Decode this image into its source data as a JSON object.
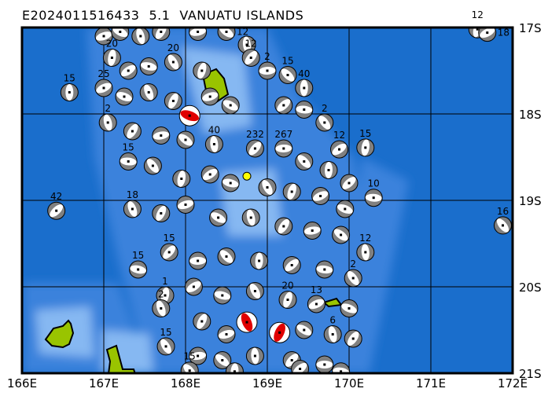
{
  "title": {
    "event_id": "E2024011516433",
    "magnitude": "5.1",
    "region": "VANUATU ISLANDS"
  },
  "map": {
    "lon_range": [
      166,
      172
    ],
    "lat_range": [
      -21,
      -17
    ],
    "lon_ticks": [
      "166E",
      "167E",
      "168E",
      "169E",
      "170E",
      "171E",
      "172E"
    ],
    "lat_ticks": [
      "17S",
      "18S",
      "19S",
      "20S",
      "21S"
    ],
    "colors": {
      "ocean_deep": "#1a6ecc",
      "ocean_mid": "#3a82dc",
      "ocean_shallow": "#5f9de9",
      "shelf": "#86b8f2",
      "land": "#99c400",
      "mechanism_fill": "#808080",
      "highlight": "#e00000",
      "epicenter": "#ffff00"
    },
    "epicenter": {
      "lon": 168.75,
      "lat": -18.72
    },
    "events": [
      [
        166.58,
        -17.75,
        "15",
        "g"
      ],
      [
        166.42,
        -19.12,
        "42",
        "g"
      ],
      [
        170.3,
        -18.97,
        "10",
        "g"
      ],
      [
        171.88,
        -19.29,
        "16",
        "g"
      ],
      [
        170.2,
        -18.39,
        "15",
        "g"
      ],
      [
        169.88,
        -18.41,
        "12",
        "g"
      ],
      [
        167.42,
        -19.8,
        "15",
        "g"
      ],
      [
        167.76,
        -20.69,
        "15",
        "g"
      ],
      [
        171.57,
        -17.02,
        "12",
        "g"
      ],
      [
        171.69,
        -17.06,
        "18",
        "g"
      ],
      [
        168.05,
        -18.02,
        "",
        "r"
      ],
      [
        168.75,
        -20.41,
        "",
        "r"
      ],
      [
        169.15,
        -20.53,
        "",
        "r"
      ],
      [
        167.0,
        -17.1,
        "",
        "g"
      ],
      [
        167.2,
        -17.05,
        "",
        "g"
      ],
      [
        167.45,
        -17.1,
        "",
        "g"
      ],
      [
        167.7,
        -17.05,
        "",
        "g"
      ],
      [
        168.15,
        -17.05,
        "",
        "g"
      ],
      [
        168.5,
        -17.05,
        "12",
        "g"
      ],
      [
        168.75,
        -17.2,
        "",
        "g"
      ],
      [
        168.8,
        -17.35,
        "12",
        "g"
      ],
      [
        169.0,
        -17.5,
        "2",
        "g"
      ],
      [
        169.25,
        -17.55,
        "15",
        "g"
      ],
      [
        169.45,
        -17.7,
        "40",
        "g"
      ],
      [
        169.2,
        -17.9,
        "",
        "g"
      ],
      [
        169.45,
        -17.95,
        "",
        "g"
      ],
      [
        169.7,
        -18.1,
        "2",
        "g"
      ],
      [
        167.1,
        -17.35,
        "20",
        "g"
      ],
      [
        167.3,
        -17.5,
        "",
        "g"
      ],
      [
        167.55,
        -17.45,
        "",
        "g"
      ],
      [
        167.85,
        -17.4,
        "20",
        "g"
      ],
      [
        168.2,
        -17.5,
        "",
        "g"
      ],
      [
        167.0,
        -17.7,
        "25",
        "g"
      ],
      [
        167.25,
        -17.8,
        "",
        "g"
      ],
      [
        167.55,
        -17.75,
        "",
        "g"
      ],
      [
        167.85,
        -17.85,
        "",
        "g"
      ],
      [
        168.3,
        -17.8,
        "",
        "g"
      ],
      [
        168.55,
        -17.9,
        "",
        "g"
      ],
      [
        167.05,
        -18.1,
        "2",
        "g"
      ],
      [
        167.35,
        -18.2,
        "",
        "g"
      ],
      [
        167.7,
        -18.25,
        "",
        "g"
      ],
      [
        168.0,
        -18.3,
        "",
        "g"
      ],
      [
        168.35,
        -18.35,
        "40",
        "g"
      ],
      [
        168.85,
        -18.4,
        "232",
        "g"
      ],
      [
        169.2,
        -18.4,
        "267",
        "g"
      ],
      [
        169.45,
        -18.55,
        "",
        "g"
      ],
      [
        169.75,
        -18.65,
        "",
        "g"
      ],
      [
        170.0,
        -18.8,
        "",
        "g"
      ],
      [
        167.3,
        -18.55,
        "15",
        "g"
      ],
      [
        167.6,
        -18.6,
        "",
        "g"
      ],
      [
        167.95,
        -18.75,
        "",
        "g"
      ],
      [
        168.3,
        -18.7,
        "",
        "g"
      ],
      [
        168.55,
        -18.8,
        "",
        "g"
      ],
      [
        169.0,
        -18.85,
        "",
        "g"
      ],
      [
        169.3,
        -18.9,
        "",
        "g"
      ],
      [
        169.65,
        -18.95,
        "",
        "g"
      ],
      [
        169.95,
        -19.1,
        "",
        "g"
      ],
      [
        167.35,
        -19.1,
        "18",
        "g"
      ],
      [
        167.7,
        -19.15,
        "",
        "g"
      ],
      [
        168.0,
        -19.05,
        "",
        "g"
      ],
      [
        168.4,
        -19.2,
        "",
        "g"
      ],
      [
        168.8,
        -19.2,
        "",
        "g"
      ],
      [
        169.2,
        -19.3,
        "",
        "g"
      ],
      [
        169.55,
        -19.35,
        "",
        "g"
      ],
      [
        169.9,
        -19.4,
        "",
        "g"
      ],
      [
        170.2,
        -19.6,
        "12",
        "g"
      ],
      [
        167.8,
        -19.6,
        "15",
        "g"
      ],
      [
        168.15,
        -19.7,
        "",
        "g"
      ],
      [
        168.5,
        -19.65,
        "",
        "g"
      ],
      [
        168.9,
        -19.7,
        "",
        "g"
      ],
      [
        169.3,
        -19.75,
        "",
        "g"
      ],
      [
        169.7,
        -19.8,
        "",
        "g"
      ],
      [
        170.05,
        -19.9,
        "2",
        "g"
      ],
      [
        167.75,
        -20.1,
        "1",
        "g"
      ],
      [
        168.1,
        -20.0,
        "",
        "g"
      ],
      [
        168.45,
        -20.1,
        "",
        "g"
      ],
      [
        168.85,
        -20.05,
        "",
        "g"
      ],
      [
        169.25,
        -20.15,
        "20",
        "g"
      ],
      [
        169.6,
        -20.2,
        "13",
        "g"
      ],
      [
        170.0,
        -20.25,
        "",
        "g"
      ],
      [
        167.7,
        -20.25,
        "2",
        "g"
      ],
      [
        168.2,
        -20.4,
        "",
        "g"
      ],
      [
        168.5,
        -20.55,
        "",
        "g"
      ],
      [
        169.45,
        -20.5,
        "",
        "g"
      ],
      [
        169.8,
        -20.55,
        "6",
        "g"
      ],
      [
        170.05,
        -20.6,
        "",
        "g"
      ],
      [
        168.15,
        -20.8,
        "",
        "g"
      ],
      [
        168.45,
        -20.85,
        "",
        "g"
      ],
      [
        168.85,
        -20.8,
        "",
        "g"
      ],
      [
        169.3,
        -20.85,
        "",
        "g"
      ],
      [
        169.7,
        -20.9,
        "",
        "g"
      ],
      [
        168.05,
        -20.97,
        "15",
        "g"
      ],
      [
        168.6,
        -20.98,
        "",
        "g"
      ],
      [
        169.4,
        -20.95,
        "",
        "g"
      ],
      [
        169.9,
        -20.98,
        "",
        "g"
      ]
    ]
  }
}
